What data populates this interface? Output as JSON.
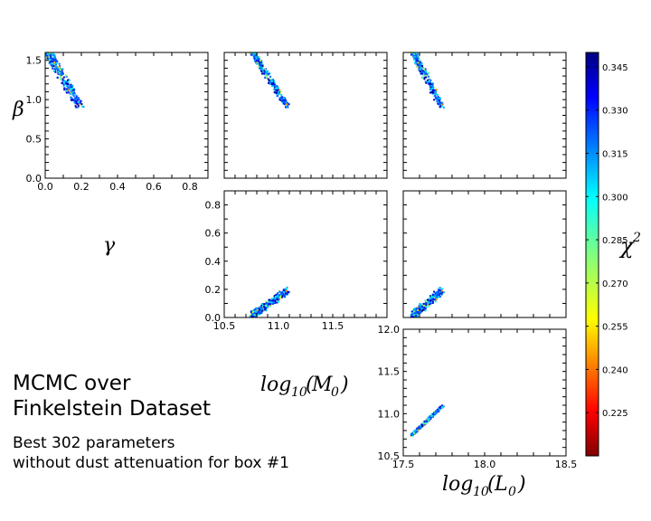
{
  "figure": {
    "title_line1": "MCMC over",
    "title_line2": "Finkelstein Dataset",
    "subtitle_line1": "Best 302 parameters",
    "subtitle_line2": "without dust attenuation for box #1"
  },
  "chart_data": [
    {
      "type": "scatter",
      "panel": "beta-vs-gamma",
      "xlabel": "γ",
      "ylabel": "β",
      "xlim": [
        0.0,
        0.9
      ],
      "ylim": [
        0.0,
        1.6
      ],
      "xticks": [
        "0.0",
        "0.2",
        "0.4",
        "0.6",
        "0.8"
      ],
      "yticks": [
        "0.0",
        "0.5",
        "1.0",
        "1.5"
      ],
      "points_summary": {
        "x_range": [
          0.01,
          0.2
        ],
        "y_range": [
          0.9,
          1.6
        ]
      }
    },
    {
      "type": "scatter",
      "panel": "beta-vs-logM0",
      "xlim": [
        10.5,
        12.0
      ],
      "ylim": [
        0.0,
        1.6
      ],
      "points_summary": {
        "x_range": [
          10.75,
          11.1
        ],
        "y_range": [
          0.9,
          1.6
        ]
      }
    },
    {
      "type": "scatter",
      "panel": "beta-vs-logL0",
      "xlim": [
        17.5,
        18.5
      ],
      "ylim": [
        0.0,
        1.6
      ],
      "points_summary": {
        "x_range": [
          17.55,
          17.75
        ],
        "y_range": [
          0.9,
          1.6
        ]
      }
    },
    {
      "type": "scatter",
      "panel": "gamma-vs-logM0",
      "xlabel": "log10(M0)",
      "ylabel": "γ",
      "xlim": [
        10.5,
        12.0
      ],
      "ylim": [
        0.0,
        0.9
      ],
      "xticks": [
        "10.5",
        "11.0",
        "11.5"
      ],
      "yticks": [
        "0.0",
        "0.2",
        "0.4",
        "0.6",
        "0.8"
      ],
      "points_summary": {
        "x_range": [
          10.75,
          11.1
        ],
        "y_range": [
          0.0,
          0.2
        ]
      }
    },
    {
      "type": "scatter",
      "panel": "gamma-vs-logL0",
      "xlim": [
        17.5,
        18.5
      ],
      "ylim": [
        0.0,
        0.9
      ],
      "points_summary": {
        "x_range": [
          17.55,
          17.75
        ],
        "y_range": [
          0.0,
          0.2
        ]
      }
    },
    {
      "type": "scatter",
      "panel": "logM0-vs-logL0",
      "xlabel": "log10(L0)",
      "ylabel": "log10(M0)",
      "xlim": [
        17.5,
        18.5
      ],
      "ylim": [
        10.5,
        12.0
      ],
      "xticks": [
        "17.5",
        "18.0",
        "18.5"
      ],
      "yticks": [
        "10.5",
        "11.0",
        "11.5",
        "12.0"
      ],
      "points_summary": {
        "x_range": [
          17.55,
          17.75
        ],
        "y_range": [
          10.72,
          11.1
        ]
      }
    },
    {
      "type": "colorbar",
      "label": "χ2",
      "colormap": "jet_r",
      "range": [
        0.21,
        0.35
      ],
      "ticks": [
        "0.225",
        "0.240",
        "0.255",
        "0.270",
        "0.285",
        "0.300",
        "0.315",
        "0.330",
        "0.345"
      ]
    }
  ]
}
